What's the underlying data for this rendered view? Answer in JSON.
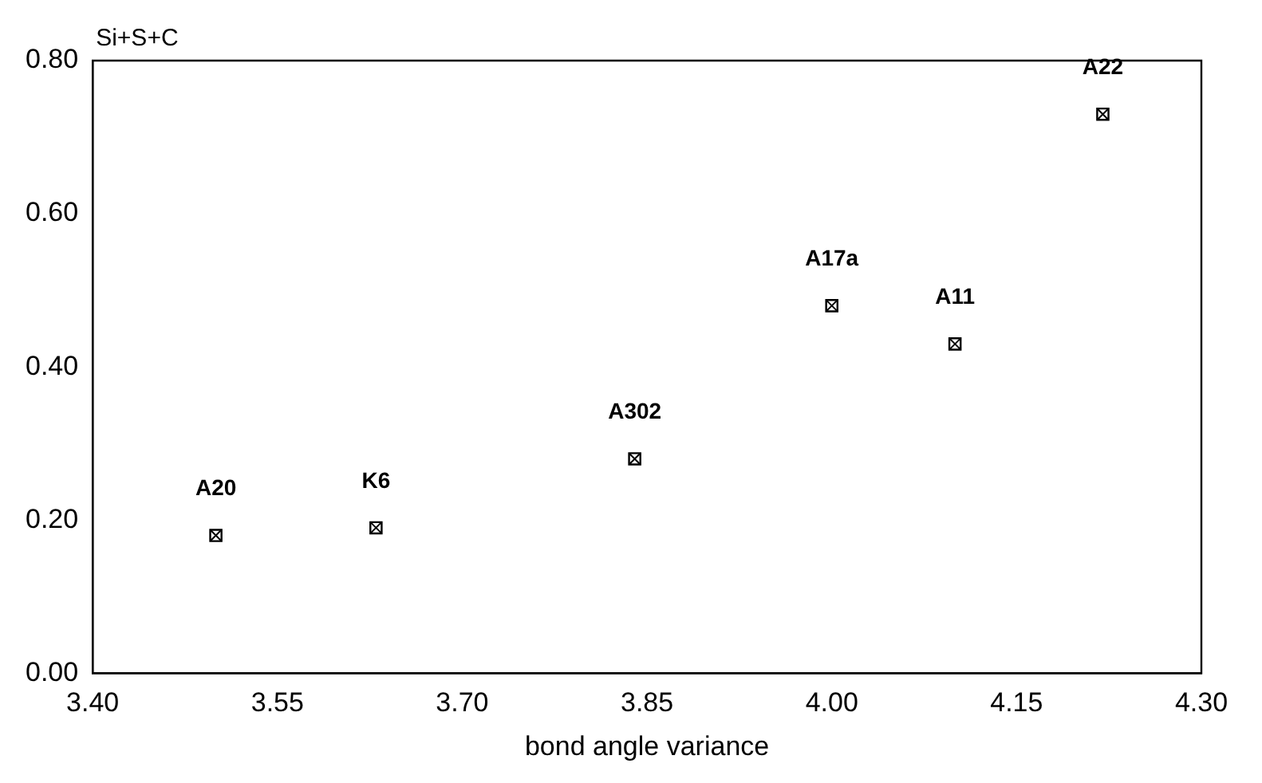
{
  "chart_data": {
    "type": "scatter",
    "xlabel": "bond angle variance",
    "ylabel": "Si+S+C",
    "x": [
      3.5,
      3.63,
      3.84,
      4.0,
      4.1,
      4.22
    ],
    "values": [
      0.18,
      0.19,
      0.28,
      0.48,
      0.43,
      0.73
    ],
    "color": "#000000",
    "marker": "square",
    "xlim": [
      3.4,
      4.3
    ],
    "xticks": [
      {
        "value": 3.4,
        "label": "3.40"
      },
      3.55,
      {
        "value": 3.7,
        "label": "3.70"
      },
      3.85,
      {
        "value": 4.0,
        "label": "4.00"
      },
      4.15,
      {
        "value": 4.3,
        "label": "4.30"
      }
    ],
    "ylim": [
      0,
      0.8
    ],
    "yticks": [
      {
        "value": 0,
        "label": "0.00"
      },
      {
        "value": 0.2,
        "label": "0.20"
      },
      {
        "value": 0.4,
        "label": "0.40"
      },
      {
        "value": 0.6,
        "label": "0.60"
      },
      {
        "value": 0.8,
        "label": "0.80"
      }
    ],
    "grid": false,
    "legend": false,
    "annotations": [
      {
        "text": "A20",
        "x": 3.5,
        "y": 0.18
      },
      {
        "text": "K6",
        "x": 3.63,
        "y": 0.19
      },
      {
        "text": "A302",
        "x": 3.84,
        "y": 0.28
      },
      {
        "text": "A17a",
        "x": 4.0,
        "y": 0.48
      },
      {
        "text": "A11",
        "x": 4.1,
        "y": 0.43
      },
      {
        "text": "A22",
        "x": 4.22,
        "y": 0.73
      }
    ]
  }
}
